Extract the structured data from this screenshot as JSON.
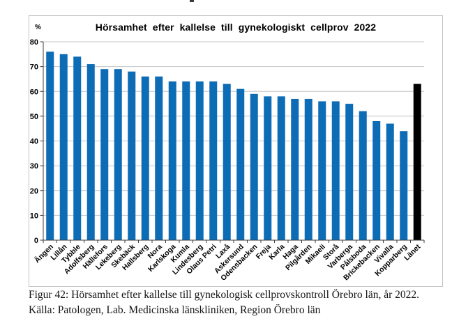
{
  "figure": {
    "caption_line1": "Figur 42: Hörsamhet efter kallelse till gynekologisk cellprovskontroll Örebro län, år 2022.",
    "caption_line2": "Källa: Patologen, Lab. Medicinska länskliniken, Region Örebro län"
  },
  "chart_data": {
    "type": "bar",
    "title": "Hörsamhet efter kallelse till gynekologiskt cellprov 2022",
    "ylabel": "%",
    "xlabel": "",
    "categories": [
      "Ängen",
      "Lillån",
      "Tybble",
      "Adolfsberg",
      "Hällefors",
      "Lekeberg",
      "Skebäck",
      "Hallsberg",
      "Nora",
      "Karlskoga",
      "Kumla",
      "Lindesberg",
      "Olaus Petri",
      "Laxå",
      "Askersund",
      "Odensbacken",
      "Freja",
      "Karla",
      "Haga",
      "Pilgården",
      "Mikaeli",
      "Storå",
      "Varberga",
      "Pålsboda",
      "Brickebacken",
      "Vivalla",
      "Kopparberg",
      "Länet"
    ],
    "values": [
      76,
      75,
      74,
      71,
      69,
      69,
      68,
      66,
      66,
      64,
      64,
      64,
      64,
      63,
      61,
      59,
      58,
      58,
      57,
      57,
      56,
      56,
      55,
      52,
      48,
      47,
      44,
      63
    ],
    "ylim": [
      0,
      80
    ],
    "yticks": [
      0,
      10,
      20,
      30,
      40,
      50,
      60,
      70,
      80
    ],
    "grid": true,
    "legend_position": "none",
    "highlight_category": "Länet",
    "colors": {
      "bar": "#0d6cb6",
      "highlight": "#000000",
      "gridline": "#c6c6c6",
      "axis": "#3c3c3c",
      "text": "#000000"
    }
  }
}
